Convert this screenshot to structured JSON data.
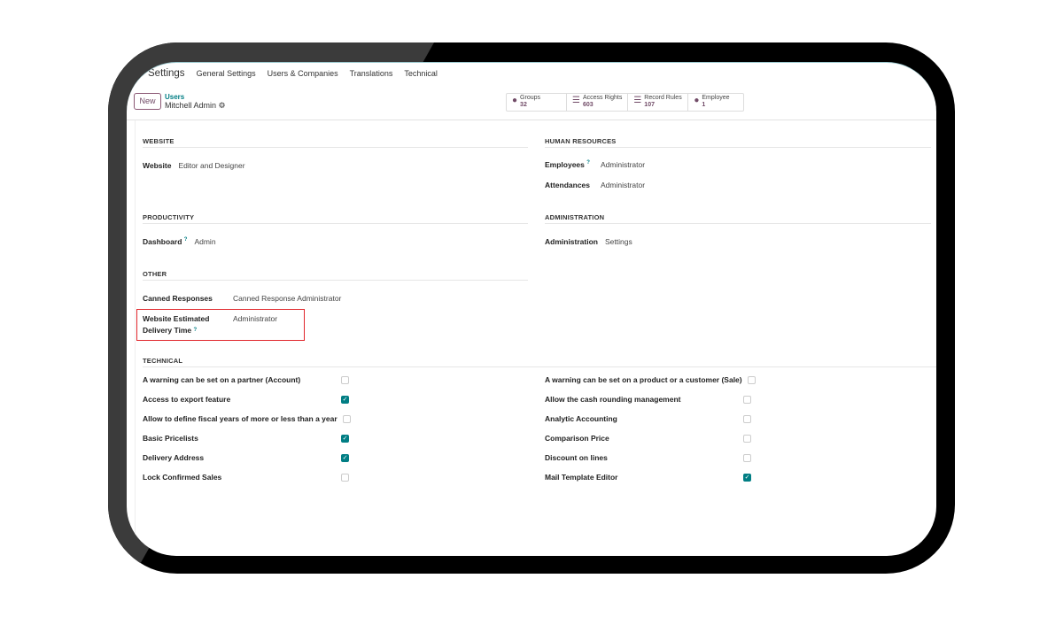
{
  "nav": {
    "app": "Settings",
    "items": [
      "General Settings",
      "Users & Companies",
      "Translations",
      "Technical"
    ]
  },
  "control": {
    "new_label": "New",
    "breadcrumb_parent": "Users",
    "record": "Mitchell Admin"
  },
  "stats": [
    {
      "label": "Groups",
      "value": "32",
      "icon": "users-icon"
    },
    {
      "label": "Access Rights",
      "value": "603",
      "icon": "list-icon"
    },
    {
      "label": "Record Rules",
      "value": "107",
      "icon": "list-icon"
    },
    {
      "label": "Employee",
      "value": "1",
      "icon": "users-icon"
    }
  ],
  "sections": {
    "website": {
      "title": "WEBSITE",
      "fields": [
        {
          "label": "Website",
          "value": "Editor and Designer"
        }
      ]
    },
    "productivity": {
      "title": "PRODUCTIVITY",
      "fields": [
        {
          "label": "Dashboard",
          "value": "Admin"
        }
      ]
    },
    "other": {
      "title": "OTHER",
      "fields": [
        {
          "label": "Canned Responses",
          "value": "Canned Response Administrator"
        },
        {
          "label_line1": "Website Estimated",
          "label_line2": "Delivery Time",
          "value": "Administrator"
        }
      ]
    },
    "hr": {
      "title": "HUMAN RESOURCES",
      "fields": [
        {
          "label": "Employees",
          "value": "Administrator"
        },
        {
          "label": "Attendances",
          "value": "Administrator"
        }
      ]
    },
    "administration": {
      "title": "ADMINISTRATION",
      "fields": [
        {
          "label": "Administration",
          "value": "Settings"
        }
      ]
    },
    "technical": {
      "title": "TECHNICAL",
      "left": [
        {
          "label": "A warning can be set on a partner (Account)",
          "checked": false
        },
        {
          "label": "Access to export feature",
          "checked": true
        },
        {
          "label": "Allow to define fiscal years of more or less than a year",
          "checked": false
        },
        {
          "label": "Basic Pricelists",
          "checked": true
        },
        {
          "label": "Delivery Address",
          "checked": true
        },
        {
          "label": "Lock Confirmed Sales",
          "checked": false
        }
      ],
      "right": [
        {
          "label": "A warning can be set on a product or a customer (Sale)",
          "checked": false
        },
        {
          "label": "Allow the cash rounding management",
          "checked": false
        },
        {
          "label": "Analytic Accounting",
          "checked": false
        },
        {
          "label": "Comparison Price",
          "checked": false
        },
        {
          "label": "Discount on lines",
          "checked": false
        },
        {
          "label": "Mail Template Editor",
          "checked": true
        }
      ]
    }
  },
  "colors": {
    "brand": "#714b67",
    "accent": "#017e84",
    "highlight": "#e0262b"
  }
}
